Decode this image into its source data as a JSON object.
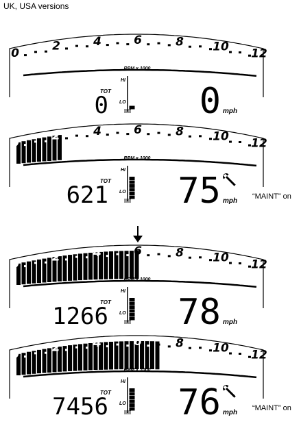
{
  "header": {
    "title": "UK, USA versions"
  },
  "gauge": {
    "rpm_scale_label": "RPM x 1000",
    "rpm_ticks": [
      "0",
      "2",
      "4",
      "6",
      "8",
      "10",
      "12"
    ],
    "tot_label": "TOT",
    "hi_label": "HI",
    "lo_label": "LO",
    "speed_unit": "mph",
    "maint_note": "“MAINT” on"
  },
  "panels": [
    {
      "id": "panel-1",
      "rpm_level": 0.0,
      "odometer": "0",
      "speed": "0",
      "temp_level": 0.15,
      "maint_icon": false,
      "maint_note": false
    },
    {
      "id": "panel-2",
      "rpm_level": 0.18,
      "odometer": "621",
      "speed": "75",
      "temp_level": 0.75,
      "maint_icon": true,
      "maint_note": true
    },
    {
      "id": "panel-3",
      "rpm_level": 0.5,
      "odometer": "1266",
      "speed": "78",
      "temp_level": 0.72,
      "maint_icon": false,
      "maint_note": false
    },
    {
      "id": "panel-4",
      "rpm_level": 0.58,
      "odometer": "7456",
      "speed": "76",
      "temp_level": 0.8,
      "maint_icon": true,
      "maint_note": true
    }
  ],
  "indicator_arrow": {
    "points_to_rpm": "6",
    "above_panel": "panel-3"
  }
}
